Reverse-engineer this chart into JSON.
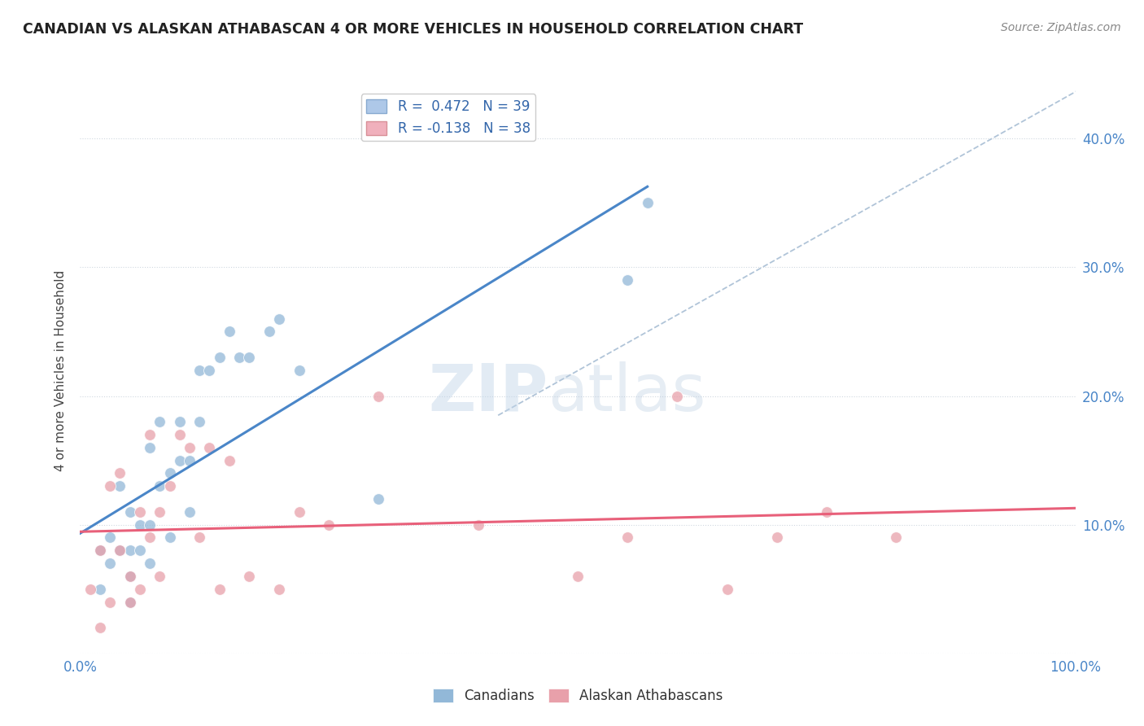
{
  "title": "CANADIAN VS ALASKAN ATHABASCAN 4 OR MORE VEHICLES IN HOUSEHOLD CORRELATION CHART",
  "source": "Source: ZipAtlas.com",
  "ylabel": "4 or more Vehicles in Household",
  "xlim": [
    0.0,
    1.0
  ],
  "ylim": [
    -0.02,
    0.44
  ],
  "plot_ylim": [
    0.0,
    0.44
  ],
  "xtick_vals": [
    0.0,
    1.0
  ],
  "xtick_labels": [
    "0.0%",
    "100.0%"
  ],
  "ytick_vals": [
    0.1,
    0.2,
    0.3,
    0.4
  ],
  "ytick_labels": [
    "10.0%",
    "20.0%",
    "30.0%",
    "40.0%"
  ],
  "blue_color": "#92b8d8",
  "pink_color": "#e8a0aa",
  "blue_line_color": "#4a86c8",
  "pink_line_color": "#e8607a",
  "dashed_line_color": "#b0c4d8",
  "grid_color": "#d0d8e0",
  "watermark_color": "#c8d8e8",
  "canadians_x": [
    0.02,
    0.02,
    0.03,
    0.03,
    0.04,
    0.04,
    0.05,
    0.05,
    0.05,
    0.05,
    0.06,
    0.06,
    0.07,
    0.07,
    0.07,
    0.08,
    0.08,
    0.09,
    0.09,
    0.1,
    0.1,
    0.11,
    0.11,
    0.12,
    0.12,
    0.13,
    0.14,
    0.15,
    0.16,
    0.17,
    0.19,
    0.2,
    0.22,
    0.3,
    0.55,
    0.57
  ],
  "canadians_y": [
    0.08,
    0.05,
    0.09,
    0.07,
    0.08,
    0.13,
    0.04,
    0.06,
    0.08,
    0.11,
    0.08,
    0.1,
    0.07,
    0.1,
    0.16,
    0.13,
    0.18,
    0.09,
    0.14,
    0.15,
    0.18,
    0.11,
    0.15,
    0.18,
    0.22,
    0.22,
    0.23,
    0.25,
    0.23,
    0.23,
    0.25,
    0.26,
    0.22,
    0.12,
    0.29,
    0.35
  ],
  "alaskan_x": [
    0.01,
    0.02,
    0.02,
    0.03,
    0.03,
    0.04,
    0.04,
    0.05,
    0.05,
    0.06,
    0.06,
    0.07,
    0.07,
    0.08,
    0.08,
    0.09,
    0.1,
    0.11,
    0.12,
    0.13,
    0.14,
    0.15,
    0.17,
    0.2,
    0.22,
    0.25,
    0.3,
    0.4,
    0.5,
    0.55,
    0.6,
    0.65,
    0.7,
    0.75,
    0.82
  ],
  "alaskan_y": [
    0.05,
    0.02,
    0.08,
    0.04,
    0.13,
    0.08,
    0.14,
    0.04,
    0.06,
    0.05,
    0.11,
    0.09,
    0.17,
    0.06,
    0.11,
    0.13,
    0.17,
    0.16,
    0.09,
    0.16,
    0.05,
    0.15,
    0.06,
    0.05,
    0.11,
    0.1,
    0.2,
    0.1,
    0.06,
    0.09,
    0.2,
    0.05,
    0.09,
    0.11,
    0.09
  ]
}
